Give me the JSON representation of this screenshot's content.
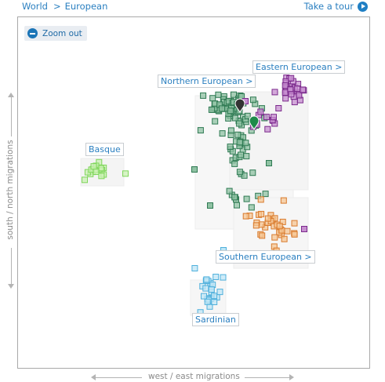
{
  "breadcrumb": {
    "root": "World",
    "separator": ">",
    "current": "European"
  },
  "tour": {
    "label": "Take a tour",
    "icon": "play-circle-icon"
  },
  "zoom": {
    "label": "Zoom out",
    "icon": "minus-circle-icon"
  },
  "axes": {
    "x_label": "west / east migrations",
    "y_label": "south / north migrations"
  },
  "clusters": [
    {
      "name": "Basque",
      "label": "Basque",
      "color": "#7fd65b",
      "fill": "#c9f0b3"
    },
    {
      "name": "Northern European",
      "label": "Northern European >",
      "color": "#2f7a53",
      "fill": "#8fc2a3"
    },
    {
      "name": "Eastern European",
      "label": "Eastern European >",
      "color": "#7b2a8c",
      "fill": "#c78fd0"
    },
    {
      "name": "Southern European",
      "label": "Southern European >",
      "color": "#d97a2c",
      "fill": "#f6c693"
    },
    {
      "name": "Sardinian",
      "label": "Sardinian",
      "color": "#4fb0dc",
      "fill": "#bfe6f6"
    }
  ],
  "markers": [
    {
      "name": "user-marker-dark",
      "color": "#333333"
    },
    {
      "name": "user-marker-green",
      "color": "#1e8a4a"
    }
  ]
}
